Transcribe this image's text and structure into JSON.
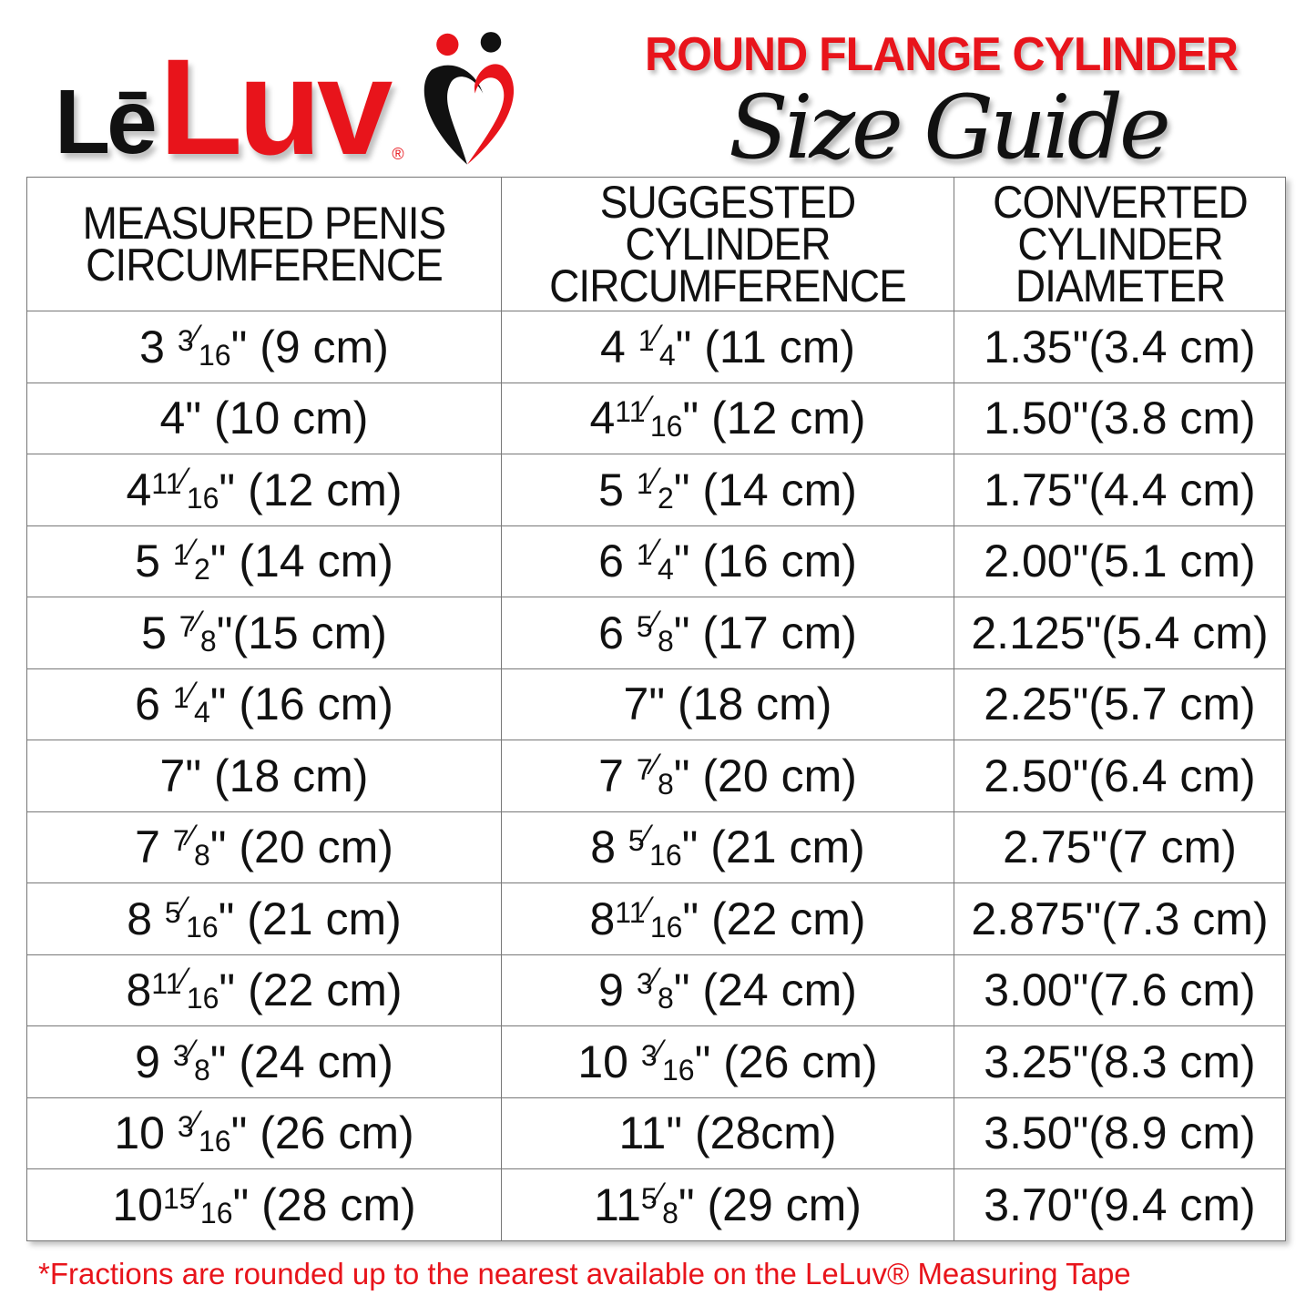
{
  "logo": {
    "le": "Lē",
    "luv": "Luv",
    "reg": "®"
  },
  "title": "ROUND FLANGE CYLINDER",
  "subtitle": "Size Guide",
  "table": {
    "headers": [
      "MEASURED PENIS CIRCUMFERENCE",
      "SUGGESTED CYLINDER CIRCUMFERENCE",
      "CONVERTED CYLINDER DIAMETER"
    ],
    "rows": [
      [
        {
          "w": "3 ",
          "n": "3",
          "d": "16",
          "t": "\" (9 cm)"
        },
        {
          "w": "4 ",
          "n": "1",
          "d": "4",
          "t": "\" (11 cm)"
        },
        {
          "w": "",
          "n": "",
          "d": "",
          "t": "1.35\"(3.4 cm)"
        }
      ],
      [
        {
          "w": "",
          "n": "",
          "d": "",
          "t": "4\" (10 cm)"
        },
        {
          "w": "4",
          "n": "11",
          "d": "16",
          "t": "\" (12 cm)"
        },
        {
          "w": "",
          "n": "",
          "d": "",
          "t": "1.50\"(3.8 cm)"
        }
      ],
      [
        {
          "w": "4",
          "n": "11",
          "d": "16",
          "t": "\" (12 cm)"
        },
        {
          "w": "5 ",
          "n": "1",
          "d": "2",
          "t": "\" (14 cm)"
        },
        {
          "w": "",
          "n": "",
          "d": "",
          "t": "1.75\"(4.4 cm)"
        }
      ],
      [
        {
          "w": "5 ",
          "n": "1",
          "d": "2",
          "t": "\" (14 cm)"
        },
        {
          "w": "6 ",
          "n": "1",
          "d": "4",
          "t": "\" (16 cm)"
        },
        {
          "w": "",
          "n": "",
          "d": "",
          "t": "2.00\"(5.1 cm)"
        }
      ],
      [
        {
          "w": "5 ",
          "n": "7",
          "d": "8",
          "t": "\"(15 cm)"
        },
        {
          "w": "6 ",
          "n": "5",
          "d": "8",
          "t": "\" (17 cm)"
        },
        {
          "w": "",
          "n": "",
          "d": "",
          "t": "2.125\"(5.4 cm)"
        }
      ],
      [
        {
          "w": "6 ",
          "n": "1",
          "d": "4",
          "t": "\" (16 cm)"
        },
        {
          "w": "",
          "n": "",
          "d": "",
          "t": "7\" (18 cm)"
        },
        {
          "w": "",
          "n": "",
          "d": "",
          "t": "2.25\"(5.7 cm)"
        }
      ],
      [
        {
          "w": "",
          "n": "",
          "d": "",
          "t": "7\" (18 cm)"
        },
        {
          "w": "7 ",
          "n": "7",
          "d": "8",
          "t": "\" (20 cm)"
        },
        {
          "w": "",
          "n": "",
          "d": "",
          "t": "2.50\"(6.4 cm)"
        }
      ],
      [
        {
          "w": "7 ",
          "n": "7",
          "d": "8",
          "t": "\" (20 cm)"
        },
        {
          "w": "8 ",
          "n": "5",
          "d": "16",
          "t": "\" (21 cm)"
        },
        {
          "w": "",
          "n": "",
          "d": "",
          "t": "2.75\"(7 cm)"
        }
      ],
      [
        {
          "w": "8 ",
          "n": "5",
          "d": "16",
          "t": "\" (21 cm)"
        },
        {
          "w": "8",
          "n": "11",
          "d": "16",
          "t": "\" (22 cm)"
        },
        {
          "w": "",
          "n": "",
          "d": "",
          "t": "2.875\"(7.3 cm)"
        }
      ],
      [
        {
          "w": "8",
          "n": "11",
          "d": "16",
          "t": "\" (22 cm)"
        },
        {
          "w": "9 ",
          "n": "3",
          "d": "8",
          "t": "\" (24 cm)"
        },
        {
          "w": "",
          "n": "",
          "d": "",
          "t": "3.00\"(7.6 cm)"
        }
      ],
      [
        {
          "w": "9 ",
          "n": "3",
          "d": "8",
          "t": "\" (24 cm)"
        },
        {
          "w": "10 ",
          "n": "3",
          "d": "16",
          "t": "\" (26 cm)"
        },
        {
          "w": "",
          "n": "",
          "d": "",
          "t": "3.25\"(8.3 cm)"
        }
      ],
      [
        {
          "w": "10 ",
          "n": "3",
          "d": "16",
          "t": "\" (26 cm)"
        },
        {
          "w": "",
          "n": "",
          "d": "",
          "t": "11\" (28cm)"
        },
        {
          "w": "",
          "n": "",
          "d": "",
          "t": "3.50\"(8.9 cm)"
        }
      ],
      [
        {
          "w": "10",
          "n": "15",
          "d": "16",
          "t": "\" (28 cm)"
        },
        {
          "w": "11",
          "n": "5",
          "d": "8",
          "t": "\" (29 cm)"
        },
        {
          "w": "",
          "n": "",
          "d": "",
          "t": "3.70\"(9.4 cm)"
        }
      ]
    ]
  },
  "footnote": "*Fractions are rounded up to the nearest available on the LeLuv® Measuring Tape",
  "colors": {
    "brand_red": "#e8141b",
    "text": "#111111"
  }
}
